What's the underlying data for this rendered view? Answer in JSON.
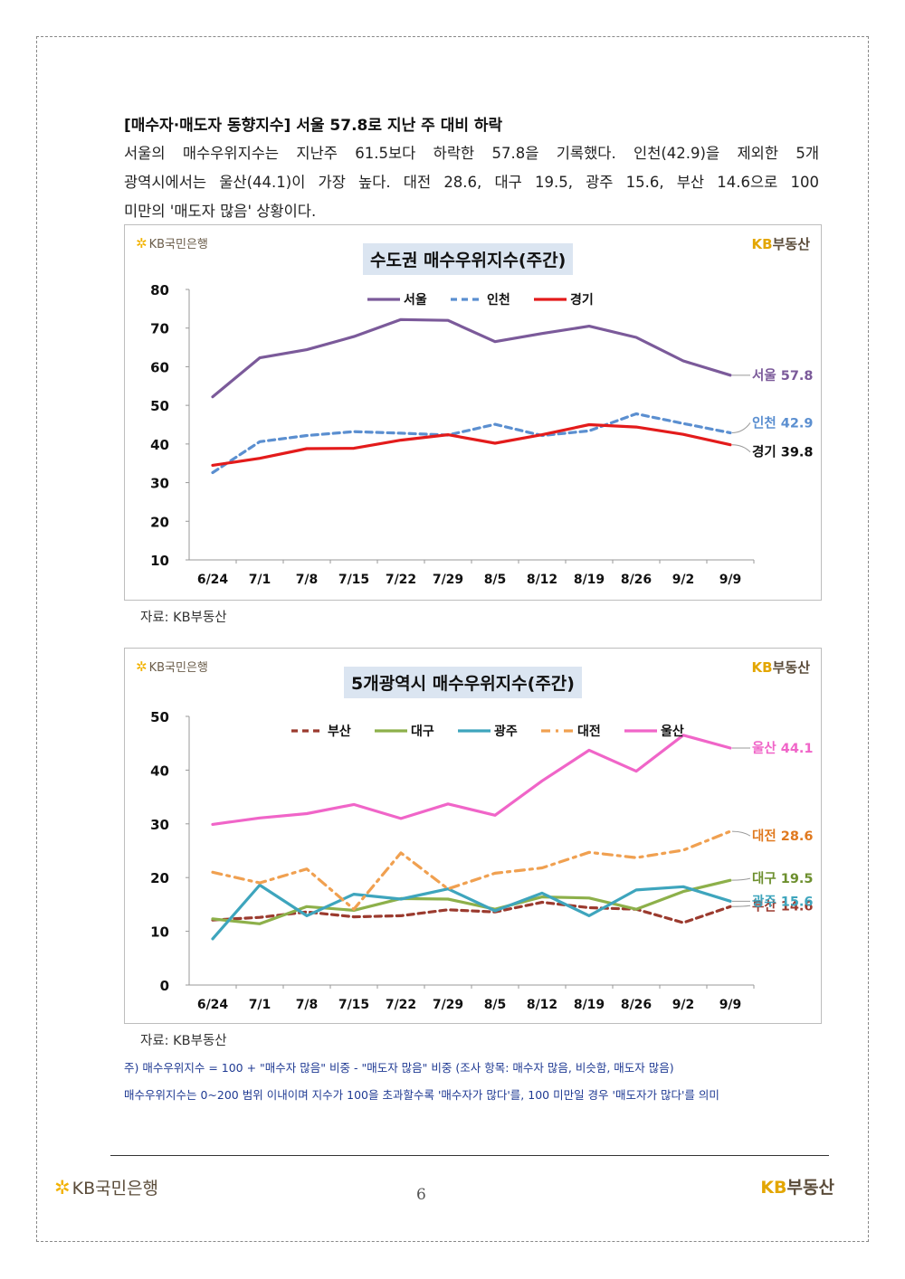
{
  "heading": "[매수자·매도자 동향지수] 서울 57.8로 지난 주 대비 하락",
  "paragraph": [
    "서울의 매수우위지수는 지난주 61.5보다 하락한 57.8을 기록했다. 인천(42.9)을 제외한 5개",
    "광역시에서는 울산(44.1)이 가장 높다. 대전 28.6, 대구 19.5, 광주 15.6, 부산 14.6으로 100",
    "미만의 '매도자 많음' 상황이다."
  ],
  "brand_left": "KB국민은행",
  "brand_right_kb": "KB",
  "brand_right_text": "부동산",
  "source_label": "자료: KB부동산",
  "notes": [
    "주) 매수우위지수 = 100 + \"매수자 많음\" 비중 - \"매도자 많음\" 비중  (조사 항목: 매수자 많음, 비슷함, 매도자 많음)",
    "매수우위지수는 0~200 범위 이내이며 지수가 100을 초과할수록 '매수자가 많다'를, 100 미만일 경우 '매도자가 많다'를 의미"
  ],
  "page_number": "6",
  "chart_data": [
    {
      "type": "line",
      "title": "수도권 매수우위지수(주간)",
      "categories": [
        "6/24",
        "7/1",
        "7/8",
        "7/15",
        "7/22",
        "7/29",
        "8/5",
        "8/12",
        "8/19",
        "8/26",
        "9/2",
        "9/9"
      ],
      "ylim": [
        10,
        80
      ],
      "yticks": [
        "10",
        "20",
        "30",
        "40",
        "50",
        "60",
        "70",
        "80"
      ],
      "grid": false,
      "legend": "top-center",
      "series": [
        {
          "name": "서울",
          "color": "#7b5a9a",
          "style": "solid",
          "values": [
            52.2,
            62.3,
            64.4,
            67.8,
            72.2,
            72.0,
            66.5,
            68.6,
            70.5,
            67.6,
            61.5,
            57.8
          ],
          "end_label": "서울 57.8"
        },
        {
          "name": "인천",
          "color": "#5b8fd0",
          "style": "dashed",
          "values": [
            32.6,
            40.6,
            42.2,
            43.2,
            42.8,
            42.3,
            45.1,
            42.2,
            43.4,
            47.8,
            45.3,
            42.9
          ],
          "end_label": "인천 42.9"
        },
        {
          "name": "경기",
          "color": "#e31b1b",
          "style": "solid",
          "values": [
            34.5,
            36.3,
            38.8,
            38.9,
            41.0,
            42.4,
            40.2,
            42.4,
            45.0,
            44.4,
            42.5,
            39.8
          ],
          "end_label": "경기 39.8"
        }
      ]
    },
    {
      "type": "line",
      "title": "5개광역시 매수우위지수(주간)",
      "categories": [
        "6/24",
        "7/1",
        "7/8",
        "7/15",
        "7/22",
        "7/29",
        "8/5",
        "8/12",
        "8/19",
        "8/26",
        "9/2",
        "9/9"
      ],
      "ylim": [
        0,
        50
      ],
      "yticks": [
        "0",
        "10",
        "20",
        "30",
        "40",
        "50"
      ],
      "grid": false,
      "legend": "top-center",
      "series": [
        {
          "name": "부산",
          "color": "#9b3a2e",
          "style": "dashed",
          "values": [
            12.1,
            12.6,
            13.6,
            12.7,
            12.9,
            14.0,
            13.6,
            15.4,
            14.4,
            14.1,
            11.6,
            14.6
          ],
          "end_label": "부산 14.6"
        },
        {
          "name": "대구",
          "color": "#8db04a",
          "style": "solid",
          "values": [
            12.3,
            11.4,
            14.6,
            13.9,
            16.1,
            16.0,
            14.1,
            16.4,
            16.2,
            14.1,
            17.4,
            19.5
          ],
          "end_label": "대구 19.5"
        },
        {
          "name": "광주",
          "color": "#3ea5bd",
          "style": "solid",
          "values": [
            8.6,
            18.6,
            12.9,
            16.9,
            16.0,
            17.9,
            13.8,
            17.1,
            12.9,
            17.7,
            18.3,
            15.6
          ],
          "end_label": "광주 15.6"
        },
        {
          "name": "대전",
          "color": "#f0a050",
          "style": "dashdot",
          "values": [
            21.0,
            19.0,
            21.6,
            14.1,
            24.6,
            17.9,
            20.8,
            21.8,
            24.7,
            23.7,
            25.1,
            28.6
          ],
          "end_label": "대전 28.6"
        },
        {
          "name": "울산",
          "color": "#f065c8",
          "style": "solid",
          "values": [
            29.9,
            31.1,
            31.9,
            33.6,
            31.0,
            33.7,
            31.6,
            38.0,
            43.7,
            39.8,
            46.5,
            44.1
          ],
          "end_label": "울산 44.1"
        }
      ]
    }
  ]
}
